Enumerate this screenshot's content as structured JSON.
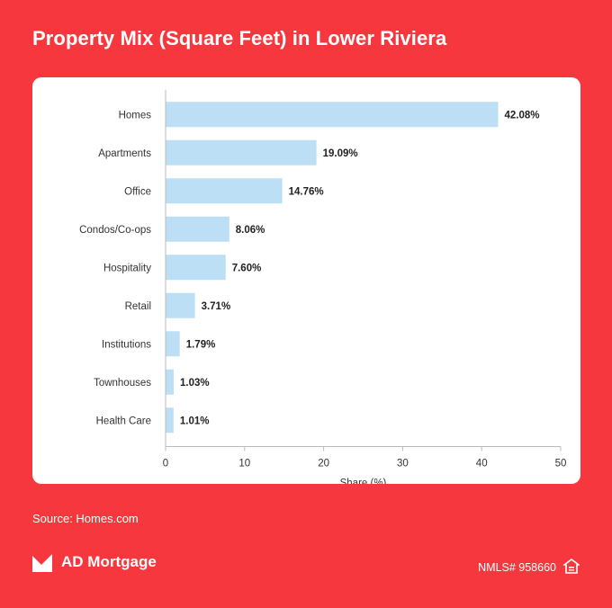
{
  "title": "Property Mix (Square Feet) in Lower Riviera",
  "source": "Source: Homes.com",
  "brand": {
    "name": "AD Mortgage",
    "logo_icon": "ad-mortgage-logo"
  },
  "nmls": "NMLS# 958660",
  "equal_housing_icon": "equal-housing-icon",
  "colors": {
    "background": "#f7373e",
    "bar": "#bddff6",
    "card": "#ffffff"
  },
  "chart_data": {
    "type": "bar",
    "orientation": "horizontal",
    "categories": [
      "Homes",
      "Apartments",
      "Office",
      "Condos/Co-ops",
      "Hospitality",
      "Retail",
      "Institutions",
      "Townhouses",
      "Health Care"
    ],
    "values": [
      42.08,
      19.09,
      14.76,
      8.06,
      7.6,
      3.71,
      1.79,
      1.03,
      1.01
    ],
    "value_labels": [
      "42.08%",
      "19.09%",
      "14.76%",
      "8.06%",
      "7.60%",
      "3.71%",
      "1.79%",
      "1.03%",
      "1.01%"
    ],
    "xlabel": "Share (%)",
    "ylabel": "",
    "xlim": [
      0,
      50
    ],
    "xticks": [
      0,
      10,
      20,
      30,
      40,
      50
    ],
    "grid": false
  }
}
